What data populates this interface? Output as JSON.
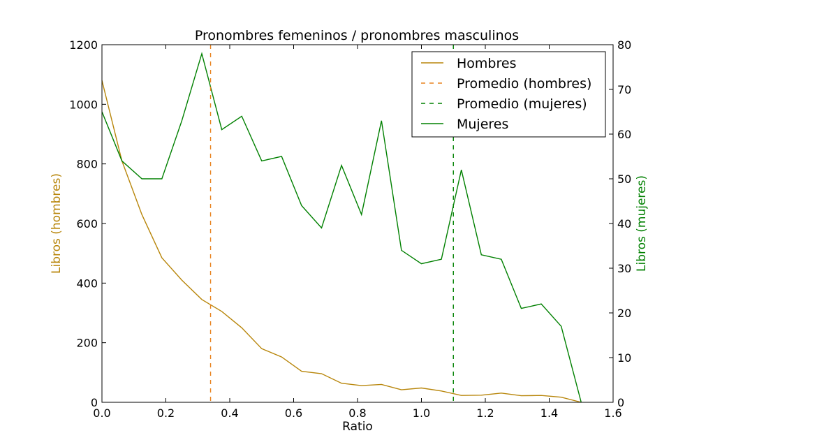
{
  "chart_data": {
    "type": "line",
    "title": "Pronombres femeninos / pronombres masculinos",
    "xlabel": "Ratio",
    "ylabel_left": "Libros (hombres)",
    "ylabel_right": "Libros (mujeres)",
    "xlim": [
      0,
      1.6
    ],
    "ylim_left": [
      0,
      1200
    ],
    "ylim_right": [
      0,
      80
    ],
    "xticks": [
      0.0,
      0.2,
      0.4,
      0.6,
      0.8,
      1.0,
      1.2,
      1.4,
      1.6
    ],
    "xtick_labels": [
      "0.0",
      "0.2",
      "0.4",
      "0.6",
      "0.8",
      "1.0",
      "1.2",
      "1.4",
      "1.6"
    ],
    "yticks_left": [
      0,
      200,
      400,
      600,
      800,
      1000,
      1200
    ],
    "ytick_labels_left": [
      "0",
      "200",
      "400",
      "600",
      "800",
      "1000",
      "1200"
    ],
    "yticks_right": [
      0,
      10,
      20,
      30,
      40,
      50,
      60,
      70,
      80
    ],
    "ytick_labels_right": [
      "0",
      "10",
      "20",
      "30",
      "40",
      "50",
      "60",
      "70",
      "80"
    ],
    "colors": {
      "hombres": "#b8860b",
      "prom_hombres": "#e8821e",
      "mujeres": "#008000"
    },
    "legend_position": "top-right",
    "grid": false,
    "series": [
      {
        "name": "Hombres",
        "axis": "left",
        "style": "solid",
        "x": [
          0.0,
          0.0625,
          0.125,
          0.1875,
          0.25,
          0.3125,
          0.375,
          0.4375,
          0.5,
          0.5625,
          0.625,
          0.6875,
          0.75,
          0.8125,
          0.875,
          0.9375,
          1.0,
          1.0625,
          1.125,
          1.1875,
          1.25,
          1.3125,
          1.375,
          1.4375,
          1.5
        ],
        "values": [
          1080,
          810,
          630,
          485,
          410,
          345,
          305,
          250,
          180,
          152,
          104,
          96,
          64,
          56,
          60,
          42,
          48,
          38,
          23,
          24,
          31,
          22,
          23,
          17,
          0
        ]
      },
      {
        "name": "Mujeres",
        "axis": "right",
        "style": "solid",
        "x": [
          0.0,
          0.0625,
          0.125,
          0.1875,
          0.25,
          0.3125,
          0.375,
          0.4375,
          0.5,
          0.5625,
          0.625,
          0.6875,
          0.75,
          0.8125,
          0.875,
          0.9375,
          1.0,
          1.0625,
          1.125,
          1.1875,
          1.25,
          1.3125,
          1.375,
          1.4375,
          1.5
        ],
        "values": [
          65,
          54,
          50,
          50,
          63,
          78,
          61,
          64,
          54,
          55,
          44,
          39,
          53,
          42,
          63,
          34,
          31,
          32,
          52,
          33,
          32,
          21,
          22,
          17,
          0
        ]
      }
    ],
    "reference_lines": [
      {
        "name": "Promedio (hombres)",
        "x": 0.34,
        "style": "dashed"
      },
      {
        "name": "Promedio (mujeres)",
        "x": 1.1,
        "style": "dashed"
      }
    ],
    "legend": [
      "Hombres",
      "Promedio (hombres)",
      "Promedio (mujeres)",
      "Mujeres"
    ]
  }
}
